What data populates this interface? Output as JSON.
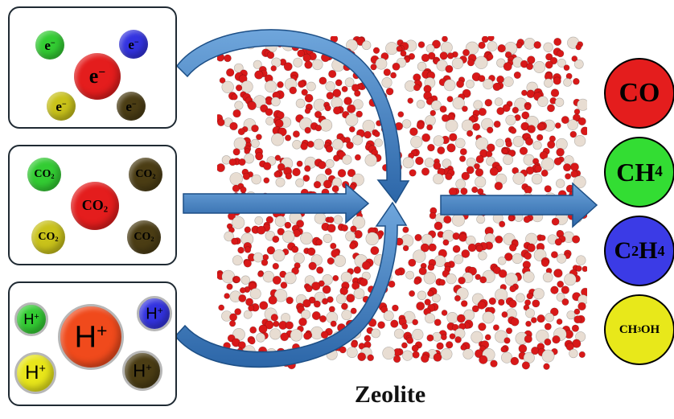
{
  "electrons": {
    "small_label": "e",
    "charge": "−",
    "colors": {
      "center": "#e41d1d",
      "top_left": "#33cc33",
      "top_right": "#3333e0",
      "bottom_left": "#c9c21a",
      "bottom_right": "#4b3d14"
    }
  },
  "co2": {
    "base": "CO",
    "sub": "2",
    "colors": {
      "center": "#e41d1d",
      "top_left": "#33cc33",
      "top_right": "#4b3d14",
      "bottom_left": "#c9c21a",
      "bottom_right": "#4b3d14"
    }
  },
  "protons": {
    "base": "H",
    "sup": "+",
    "colors": {
      "center": "#f04a1c",
      "top_left": "#33cc33",
      "top_right": "#3333e0",
      "bottom_left": "#e8e61a",
      "bottom_right": "#4b3d14"
    }
  },
  "zeolite": {
    "label": "Zeolite"
  },
  "products": [
    {
      "parts": [
        {
          "t": "CO"
        }
      ],
      "color": "#e41d1d"
    },
    {
      "parts": [
        {
          "t": "CH"
        },
        {
          "sub": "4"
        }
      ],
      "color": "#33dd33"
    },
    {
      "parts": [
        {
          "t": "C"
        },
        {
          "sub": "2"
        },
        {
          "t": "H"
        },
        {
          "sub": "4"
        }
      ],
      "color": "#3b3be6"
    },
    {
      "parts": [
        {
          "t": "CH"
        },
        {
          "sub": "3"
        },
        {
          "t": "OH"
        }
      ],
      "color": "#e8e81a"
    }
  ],
  "arrow_color": "#3f7fc4",
  "atom_colors": {
    "oxygen": "#d81818",
    "silicon": "#e8ddd2"
  }
}
